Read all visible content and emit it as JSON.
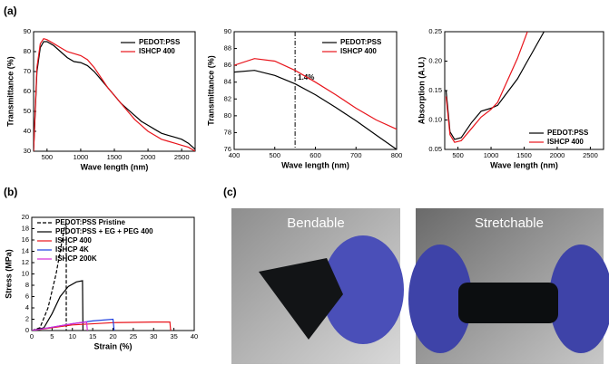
{
  "panel_labels": [
    "(a)",
    "(b)",
    "(c)"
  ],
  "photos": [
    {
      "label": "Bendable"
    },
    {
      "label": "Stretchable"
    }
  ],
  "chart_data": [
    {
      "type": "line",
      "xlabel": "Wave length (nm)",
      "ylabel": "Transmittance (%)",
      "x": [
        300,
        350,
        400,
        450,
        500,
        600,
        700,
        800,
        900,
        1000,
        1100,
        1200,
        1300,
        1400,
        1500,
        1600,
        1700,
        1800,
        1900,
        2000,
        2100,
        2200,
        2300,
        2400,
        2500,
        2600,
        2700
      ],
      "series": [
        {
          "name": "PEDOT:PSS",
          "color": "#000000",
          "values": [
            30,
            70,
            82,
            85,
            85,
            83,
            80,
            77,
            75,
            74.5,
            73,
            70,
            66,
            62,
            58,
            54,
            51,
            48,
            45,
            43,
            41,
            39,
            38,
            37,
            36,
            34,
            31
          ]
        },
        {
          "name": "ISHCP 400",
          "color": "#e8141b",
          "values": [
            30,
            72,
            84,
            86.5,
            86,
            84,
            82,
            80,
            79,
            78,
            76,
            72,
            67,
            62,
            58,
            54,
            50,
            46,
            43,
            40,
            38,
            36,
            35,
            34,
            33,
            32,
            30
          ]
        }
      ],
      "xlim": [
        300,
        2700
      ],
      "xticks": [
        500,
        1000,
        1500,
        2000,
        2500
      ],
      "ylim": [
        30,
        90
      ],
      "yticks": [
        30,
        40,
        50,
        60,
        70,
        80,
        90
      ],
      "legend": "upper right"
    },
    {
      "type": "line",
      "xlabel": "Wave length (nm)",
      "ylabel": "Transmittance (%)",
      "x": [
        400,
        450,
        500,
        550,
        600,
        650,
        700,
        750,
        800
      ],
      "series": [
        {
          "name": "PEDOT:PSS",
          "color": "#000000",
          "values": [
            85.2,
            85.4,
            84.8,
            83.8,
            82.5,
            81.0,
            79.4,
            77.7,
            76.0
          ]
        },
        {
          "name": "ISHCP 400",
          "color": "#e8141b",
          "values": [
            86.0,
            86.8,
            86.5,
            85.4,
            84.0,
            82.5,
            80.9,
            79.5,
            78.4
          ]
        }
      ],
      "xlim": [
        400,
        800
      ],
      "xticks": [
        400,
        500,
        600,
        700,
        800
      ],
      "ylim": [
        76,
        90
      ],
      "yticks": [
        76,
        78,
        80,
        82,
        84,
        86,
        88,
        90
      ],
      "legend": "upper right",
      "vline": 550,
      "annotation": "1.4%"
    },
    {
      "type": "line",
      "xlabel": "Wave length (nm)",
      "ylabel": "Absorption (A.U.)",
      "x": [
        320,
        380,
        450,
        550,
        700,
        850,
        1000,
        1100,
        1200,
        1400,
        1550,
        1600,
        1800
      ],
      "series": [
        {
          "name": "PEDOT:PSS",
          "color": "#000000",
          "values": [
            0.15,
            0.08,
            0.067,
            0.07,
            0.095,
            0.115,
            0.12,
            0.125,
            0.14,
            0.17,
            0.2,
            0.21,
            0.25
          ]
        },
        {
          "name": "ISHCP 400",
          "color": "#e8141b",
          "values": [
            0.14,
            0.075,
            0.062,
            0.065,
            0.085,
            0.105,
            0.118,
            0.13,
            0.155,
            0.205,
            0.25,
            null,
            null
          ]
        }
      ],
      "xlim": [
        300,
        2700
      ],
      "xticks": [
        500,
        1000,
        1500,
        2000,
        2500
      ],
      "ylim": [
        0.05,
        0.25
      ],
      "yticks": [
        0.05,
        {
          "value": 0.1,
          "label": "0.10"
        },
        0.15,
        {
          "value": 0.2,
          "label": "0.20"
        },
        0.25
      ],
      "legend": "lower right"
    },
    {
      "type": "line",
      "xlabel": "Strain (%)",
      "ylabel": "Stress (MPa)",
      "series": [
        {
          "name": "PEDOT:PSS Pristine",
          "color": "#000000",
          "dash": true,
          "x": [
            0,
            2,
            4,
            6,
            8,
            8.5,
            8.5
          ],
          "values": [
            0,
            0.5,
            4,
            10,
            18,
            19,
            0
          ]
        },
        {
          "name": "PEDOT:PSS + EG + PEG 400",
          "color": "#000000",
          "x": [
            0,
            3,
            5,
            7,
            9,
            11,
            12.5,
            12.6
          ],
          "values": [
            0,
            0.5,
            3,
            6,
            7.8,
            8.6,
            8.8,
            0
          ]
        },
        {
          "name": "ISHCP 400",
          "color": "#e8141b",
          "x": [
            0,
            5,
            10,
            20,
            30,
            34,
            34.2
          ],
          "values": [
            0,
            0.5,
            1.0,
            1.4,
            1.5,
            1.5,
            0
          ]
        },
        {
          "name": "ISHCP 4K",
          "color": "#1f3fe0",
          "x": [
            0,
            5,
            10,
            15,
            20,
            20.3
          ],
          "values": [
            0,
            0.6,
            1.2,
            1.7,
            2.0,
            0
          ]
        },
        {
          "name": "ISHCP 200K",
          "color": "#d62bd6",
          "x": [
            0,
            5,
            10,
            13.5,
            13.7
          ],
          "values": [
            0,
            0.6,
            1.2,
            1.5,
            0
          ]
        }
      ],
      "xlim": [
        0,
        40
      ],
      "xticks": [
        0,
        5,
        10,
        15,
        20,
        25,
        30,
        35,
        40
      ],
      "ylim": [
        0,
        20
      ],
      "yticks": [
        0,
        2,
        4,
        6,
        8,
        10,
        12,
        14,
        16,
        18,
        20
      ],
      "legend": "upper left"
    }
  ]
}
